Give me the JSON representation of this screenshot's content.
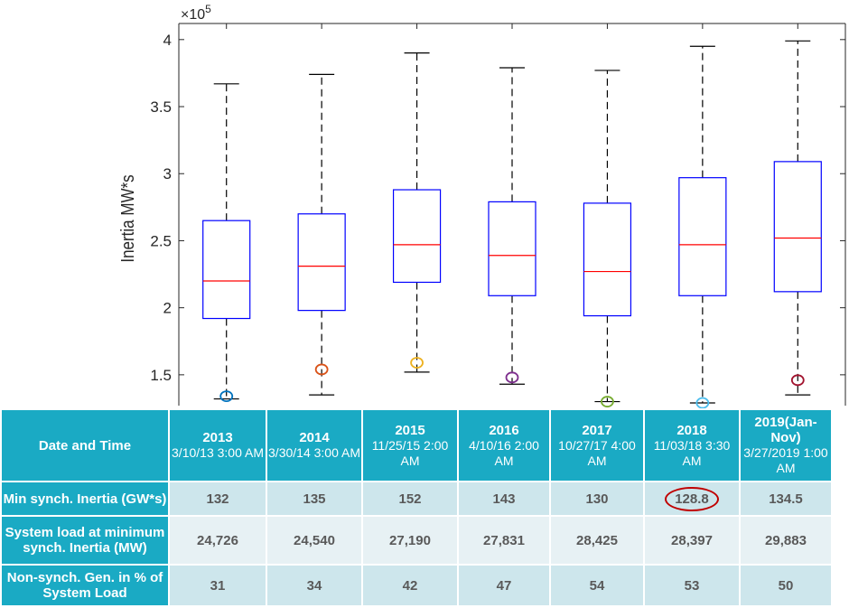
{
  "chart_data": {
    "type": "box",
    "ylabel": "Inertia MW*s",
    "y_exponent": "×10",
    "y_exponent_power": "5",
    "yticks": [
      "1.5",
      "2",
      "2.5",
      "3",
      "3.5",
      "4"
    ],
    "ytick_values": [
      1.5,
      2,
      2.5,
      3,
      3.5,
      4
    ],
    "ylim": [
      1.27,
      4.12
    ],
    "categories": [
      "2013",
      "2014",
      "2015",
      "2016",
      "2017",
      "2018",
      "2019(Jan-Nov)"
    ],
    "boxes": [
      {
        "whisker_high": 3.67,
        "q3": 2.65,
        "median": 2.2,
        "q1": 1.92,
        "whisker_low": 1.32,
        "min_marker": 1.34,
        "marker_color": "#0072bd"
      },
      {
        "whisker_high": 3.74,
        "q3": 2.7,
        "median": 2.31,
        "q1": 1.98,
        "whisker_low": 1.35,
        "min_marker": 1.54,
        "marker_color": "#d95319"
      },
      {
        "whisker_high": 3.9,
        "q3": 2.88,
        "median": 2.47,
        "q1": 2.19,
        "whisker_low": 1.52,
        "min_marker": 1.59,
        "marker_color": "#edb120"
      },
      {
        "whisker_high": 3.79,
        "q3": 2.79,
        "median": 2.39,
        "q1": 2.09,
        "whisker_low": 1.43,
        "min_marker": 1.48,
        "marker_color": "#7e2f8e"
      },
      {
        "whisker_high": 3.77,
        "q3": 2.78,
        "median": 2.27,
        "q1": 1.94,
        "whisker_low": 1.3,
        "min_marker": 1.3,
        "marker_color": "#77ac30"
      },
      {
        "whisker_high": 3.95,
        "q3": 2.97,
        "median": 2.47,
        "q1": 2.09,
        "whisker_low": 1.29,
        "min_marker": 1.29,
        "marker_color": "#4dbeee"
      },
      {
        "whisker_high": 3.99,
        "q3": 3.09,
        "median": 2.52,
        "q1": 2.12,
        "whisker_low": 1.35,
        "min_marker": 1.46,
        "marker_color": "#a2142f"
      }
    ],
    "colors": {
      "box": "#0000ff",
      "median": "#ff0000",
      "whisker": "#000000"
    }
  },
  "table": {
    "header_label": "Date and Time",
    "columns": [
      {
        "year": "2013",
        "date": "3/10/13 3:00 AM"
      },
      {
        "year": "2014",
        "date": "3/30/14 3:00 AM"
      },
      {
        "year": "2015",
        "date": "11/25/15 2:00 AM"
      },
      {
        "year": "2016",
        "date": "4/10/16 2:00 AM"
      },
      {
        "year": "2017",
        "date": "10/27/17 4:00 AM"
      },
      {
        "year": "2018",
        "date": "11/03/18 3:30 AM"
      },
      {
        "year": "2019(Jan-Nov)",
        "date": "3/27/2019 1:00 AM"
      }
    ],
    "rows": [
      {
        "label": "Min synch. Inertia (GW*s)",
        "values": [
          "132",
          "135",
          "152",
          "143",
          "130",
          "128.8",
          "134.5"
        ]
      },
      {
        "label": "System load at minimum synch. Inertia (MW)",
        "values": [
          "24,726",
          "24,540",
          "27,190",
          "27,831",
          "28,425",
          "28,397",
          "29,883"
        ]
      },
      {
        "label": "Non-synch. Gen. in % of System Load",
        "values": [
          "31",
          "34",
          "42",
          "47",
          "54",
          "53",
          "50"
        ]
      }
    ],
    "highlight": {
      "row": 0,
      "col": 5,
      "color": "#c00000"
    },
    "colors": {
      "header": "#1aaac4",
      "row_dark": "#cde6ec",
      "row_light": "#e7f1f4",
      "text": "#595959"
    }
  }
}
